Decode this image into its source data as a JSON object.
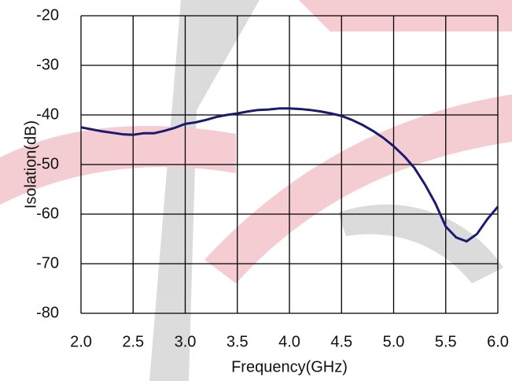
{
  "chart_data": {
    "type": "line",
    "x_label": "Frequency(GHz)",
    "y_label": "Isolation(dB)",
    "x": [
      2.0,
      2.2,
      2.4,
      2.5,
      2.6,
      2.7,
      2.8,
      2.9,
      3.0,
      3.1,
      3.2,
      3.3,
      3.4,
      3.5,
      3.6,
      3.7,
      3.8,
      3.9,
      4.0,
      4.1,
      4.2,
      4.3,
      4.4,
      4.5,
      4.6,
      4.7,
      4.8,
      4.9,
      5.0,
      5.1,
      5.2,
      5.3,
      5.4,
      5.5,
      5.6,
      5.7,
      5.8,
      5.9,
      6.0
    ],
    "series": [
      {
        "color": "#1a1a6e",
        "values": [
          -42.5,
          -43.3,
          -43.9,
          -44.0,
          -43.7,
          -43.7,
          -43.2,
          -42.6,
          -41.8,
          -41.5,
          -41.0,
          -40.4,
          -40.0,
          -39.7,
          -39.3,
          -39.0,
          -38.9,
          -38.7,
          -38.7,
          -38.8,
          -39.0,
          -39.3,
          -39.7,
          -40.2,
          -41.0,
          -42.0,
          -43.2,
          -44.6,
          -46.3,
          -48.3,
          -50.7,
          -54.0,
          -57.8,
          -62.5,
          -64.7,
          -65.5,
          -64.0,
          -61.0,
          -58.5
        ]
      }
    ],
    "xlim": [
      2,
      6
    ],
    "xticks": [
      {
        "value": 2,
        "label": "2.0"
      },
      {
        "value": 2.5,
        "label": "2.5"
      },
      {
        "value": 3,
        "label": "3.0"
      },
      {
        "value": 3.5,
        "label": "3.5"
      },
      {
        "value": 4,
        "label": "4.0"
      },
      {
        "value": 4.5,
        "label": "4.5"
      },
      {
        "value": 5,
        "label": "5.0"
      },
      {
        "value": 5.5,
        "label": "5.5"
      },
      {
        "value": 6,
        "label": "6.0"
      }
    ],
    "ylim": [
      -80,
      -20
    ],
    "yticks": [
      -80,
      -70,
      -60,
      -50,
      -40,
      -30,
      -20
    ],
    "grid": true
  }
}
